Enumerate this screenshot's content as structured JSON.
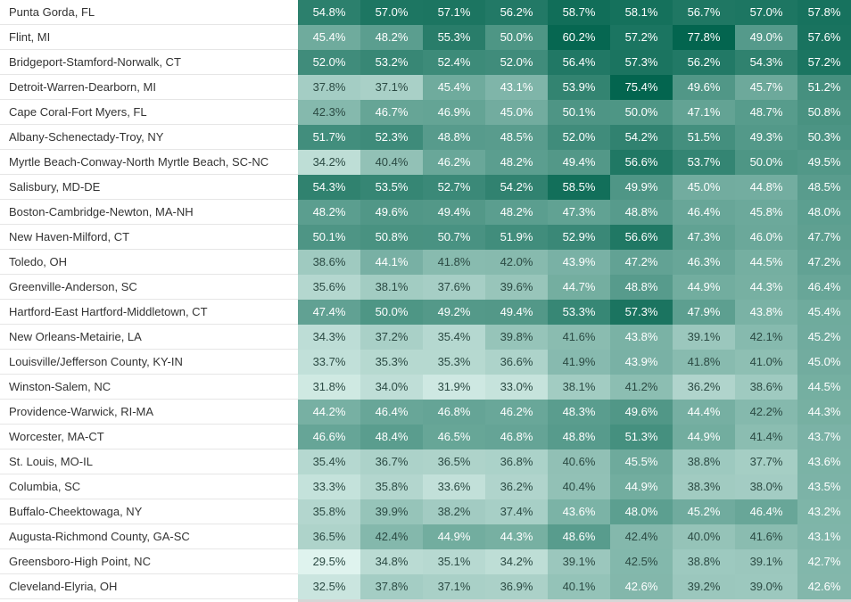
{
  "chart_data": {
    "type": "heatmap",
    "color_scale": {
      "low": "#dff3ee",
      "high": "#03654f"
    },
    "value_range": [
      29.5,
      77.8
    ],
    "rows": [
      {
        "label": "Punta Gorda, FL",
        "values": [
          "54.8%",
          "57.0%",
          "57.1%",
          "56.2%",
          "58.7%",
          "58.1%",
          "56.7%",
          "57.0%",
          "57.8%"
        ]
      },
      {
        "label": "Flint, MI",
        "values": [
          "45.4%",
          "48.2%",
          "55.3%",
          "50.0%",
          "60.2%",
          "57.2%",
          "77.8%",
          "49.0%",
          "57.6%"
        ]
      },
      {
        "label": "Bridgeport-Stamford-Norwalk, CT",
        "values": [
          "52.0%",
          "53.2%",
          "52.4%",
          "52.0%",
          "56.4%",
          "57.3%",
          "56.2%",
          "54.3%",
          "57.2%"
        ]
      },
      {
        "label": "Detroit-Warren-Dearborn, MI",
        "values": [
          "37.8%",
          "37.1%",
          "45.4%",
          "43.1%",
          "53.9%",
          "75.4%",
          "49.6%",
          "45.7%",
          "51.2%"
        ]
      },
      {
        "label": "Cape Coral-Fort Myers, FL",
        "values": [
          "42.3%",
          "46.7%",
          "46.9%",
          "45.0%",
          "50.1%",
          "50.0%",
          "47.1%",
          "48.7%",
          "50.8%"
        ]
      },
      {
        "label": "Albany-Schenectady-Troy, NY",
        "values": [
          "51.7%",
          "52.3%",
          "48.8%",
          "48.5%",
          "52.0%",
          "54.2%",
          "51.5%",
          "49.3%",
          "50.3%"
        ]
      },
      {
        "label": "Myrtle Beach-Conway-North Myrtle Beach, SC-NC",
        "values": [
          "34.2%",
          "40.4%",
          "46.2%",
          "48.2%",
          "49.4%",
          "56.6%",
          "53.7%",
          "50.0%",
          "49.5%"
        ]
      },
      {
        "label": "Salisbury, MD-DE",
        "values": [
          "54.3%",
          "53.5%",
          "52.7%",
          "54.2%",
          "58.5%",
          "49.9%",
          "45.0%",
          "44.8%",
          "48.5%"
        ]
      },
      {
        "label": "Boston-Cambridge-Newton, MA-NH",
        "values": [
          "48.2%",
          "49.6%",
          "49.4%",
          "48.2%",
          "47.3%",
          "48.8%",
          "46.4%",
          "45.8%",
          "48.0%"
        ]
      },
      {
        "label": "New Haven-Milford, CT",
        "values": [
          "50.1%",
          "50.8%",
          "50.7%",
          "51.9%",
          "52.9%",
          "56.6%",
          "47.3%",
          "46.0%",
          "47.7%"
        ]
      },
      {
        "label": "Toledo, OH",
        "values": [
          "38.6%",
          "44.1%",
          "41.8%",
          "42.0%",
          "43.9%",
          "47.2%",
          "46.3%",
          "44.5%",
          "47.2%"
        ]
      },
      {
        "label": "Greenville-Anderson, SC",
        "values": [
          "35.6%",
          "38.1%",
          "37.6%",
          "39.6%",
          "44.7%",
          "48.8%",
          "44.9%",
          "44.3%",
          "46.4%"
        ]
      },
      {
        "label": "Hartford-East Hartford-Middletown, CT",
        "values": [
          "47.4%",
          "50.0%",
          "49.2%",
          "49.4%",
          "53.3%",
          "57.3%",
          "47.9%",
          "43.8%",
          "45.4%"
        ]
      },
      {
        "label": "New Orleans-Metairie, LA",
        "values": [
          "34.3%",
          "37.2%",
          "35.4%",
          "39.8%",
          "41.6%",
          "43.8%",
          "39.1%",
          "42.1%",
          "45.2%"
        ]
      },
      {
        "label": "Louisville/Jefferson County, KY-IN",
        "values": [
          "33.7%",
          "35.3%",
          "35.3%",
          "36.6%",
          "41.9%",
          "43.9%",
          "41.8%",
          "41.0%",
          "45.0%"
        ]
      },
      {
        "label": "Winston-Salem, NC",
        "values": [
          "31.8%",
          "34.0%",
          "31.9%",
          "33.0%",
          "38.1%",
          "41.2%",
          "36.2%",
          "38.6%",
          "44.5%"
        ]
      },
      {
        "label": "Providence-Warwick, RI-MA",
        "values": [
          "44.2%",
          "46.4%",
          "46.8%",
          "46.2%",
          "48.3%",
          "49.6%",
          "44.4%",
          "42.2%",
          "44.3%"
        ]
      },
      {
        "label": "Worcester, MA-CT",
        "values": [
          "46.6%",
          "48.4%",
          "46.5%",
          "46.8%",
          "48.8%",
          "51.3%",
          "44.9%",
          "41.4%",
          "43.7%"
        ]
      },
      {
        "label": "St. Louis, MO-IL",
        "values": [
          "35.4%",
          "36.7%",
          "36.5%",
          "36.8%",
          "40.6%",
          "45.5%",
          "38.8%",
          "37.7%",
          "43.6%"
        ]
      },
      {
        "label": "Columbia, SC",
        "values": [
          "33.3%",
          "35.8%",
          "33.6%",
          "36.2%",
          "40.4%",
          "44.9%",
          "38.3%",
          "38.0%",
          "43.5%"
        ]
      },
      {
        "label": "Buffalo-Cheektowaga, NY",
        "values": [
          "35.8%",
          "39.9%",
          "38.2%",
          "37.4%",
          "43.6%",
          "48.0%",
          "45.2%",
          "46.4%",
          "43.2%"
        ]
      },
      {
        "label": "Augusta-Richmond County, GA-SC",
        "values": [
          "36.5%",
          "42.4%",
          "44.9%",
          "44.3%",
          "48.6%",
          "42.4%",
          "40.0%",
          "41.6%",
          "43.1%"
        ]
      },
      {
        "label": "Greensboro-High Point, NC",
        "values": [
          "29.5%",
          "34.8%",
          "35.1%",
          "34.2%",
          "39.1%",
          "42.5%",
          "38.8%",
          "39.1%",
          "42.7%"
        ]
      },
      {
        "label": "Cleveland-Elyria, OH",
        "values": [
          "32.5%",
          "37.8%",
          "37.1%",
          "36.9%",
          "40.1%",
          "42.6%",
          "39.2%",
          "39.0%",
          "42.6%"
        ]
      }
    ]
  }
}
